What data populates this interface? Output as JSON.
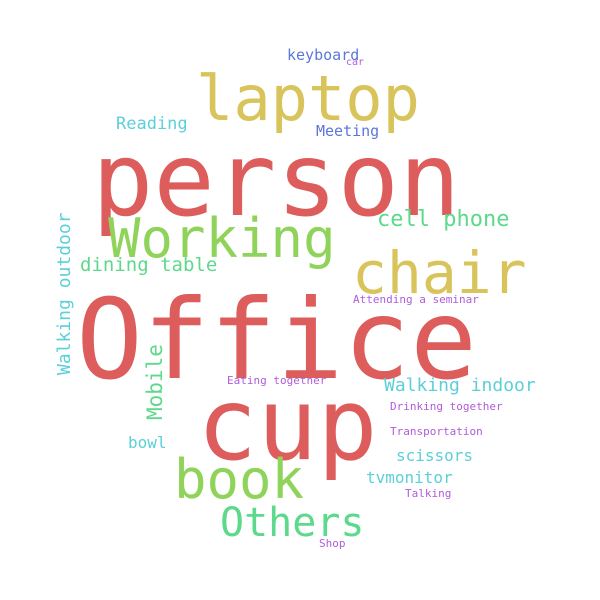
{
  "words": {
    "office": {
      "text": "Office",
      "color": "#dd5c5c"
    },
    "person": {
      "text": "person",
      "color": "#dd5c5c"
    },
    "cup": {
      "text": "cup",
      "color": "#dd5c5c"
    },
    "laptop": {
      "text": "laptop",
      "color": "#d9c35b"
    },
    "chair": {
      "text": "chair",
      "color": "#d9c35b"
    },
    "working": {
      "text": "Working",
      "color": "#8fd35a"
    },
    "book": {
      "text": "book",
      "color": "#8fd35a"
    },
    "others": {
      "text": "Others",
      "color": "#5cd98a"
    },
    "cell_phone": {
      "text": "cell phone",
      "color": "#5cd98a"
    },
    "dining_table": {
      "text": "dining table",
      "color": "#5cd98a"
    },
    "mobile": {
      "text": "Mobile",
      "color": "#5cd98a"
    },
    "walking_outdoor": {
      "text": "Walking outdoor",
      "color": "#5ccfd9"
    },
    "walking_indoor": {
      "text": "Walking indoor",
      "color": "#5ccfd9"
    },
    "reading": {
      "text": "Reading",
      "color": "#5ccfd9"
    },
    "bowl": {
      "text": "bowl",
      "color": "#5ccfd9"
    },
    "scissors": {
      "text": "scissors",
      "color": "#5ccfd9"
    },
    "tvmonitor": {
      "text": "tvmonitor",
      "color": "#5ccfd9"
    },
    "keyboard": {
      "text": "keyboard",
      "color": "#5c76d9"
    },
    "meeting": {
      "text": "Meeting",
      "color": "#5c76d9"
    },
    "car": {
      "text": "car",
      "color": "#b05cd9"
    },
    "attending_seminar": {
      "text": "Attending a seminar",
      "color": "#b05cd9"
    },
    "eating_together": {
      "text": "Eating together",
      "color": "#b05cd9"
    },
    "drinking_together": {
      "text": "Drinking together",
      "color": "#b05cd9"
    },
    "transportation": {
      "text": "Transportation",
      "color": "#b05cd9"
    },
    "talking": {
      "text": "Talking",
      "color": "#b05cd9"
    },
    "shop": {
      "text": "Shop",
      "color": "#b05cd9"
    }
  }
}
